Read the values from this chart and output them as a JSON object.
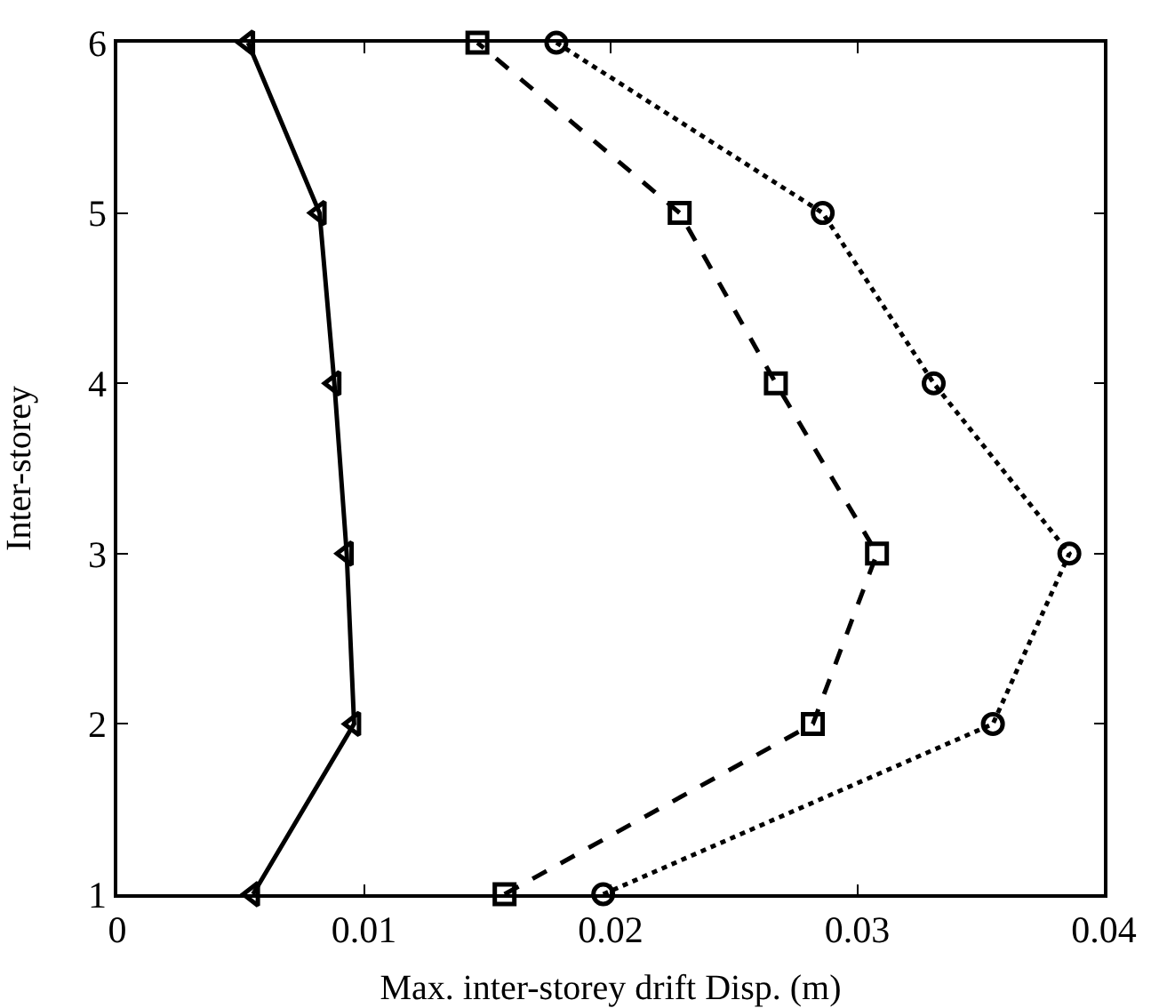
{
  "chart_data": {
    "type": "line",
    "xlabel": "Max. inter-storey drift Disp. (m)",
    "ylabel": "Inter-storey",
    "xlim": [
      0,
      0.04
    ],
    "xticks": [
      0,
      0.01,
      0.02,
      0.03,
      0.04
    ],
    "ylim": [
      1,
      6
    ],
    "yticks": [
      1,
      2,
      3,
      4,
      5,
      6
    ],
    "series": [
      {
        "color": "#000000",
        "marker": "triangle",
        "line_style": "solid",
        "x": [
          0.0055,
          0.0096,
          0.0093,
          0.0088,
          0.0082,
          0.0053
        ],
        "values": [
          1,
          2,
          3,
          4,
          5,
          6
        ]
      },
      {
        "color": "#000000",
        "marker": "square",
        "line_style": "dashed",
        "x": [
          0.0157,
          0.0282,
          0.0308,
          0.0267,
          0.0228,
          0.0146
        ],
        "values": [
          1,
          2,
          3,
          4,
          5,
          6
        ]
      },
      {
        "color": "#000000",
        "marker": "circle",
        "line_style": "dotted",
        "x": [
          0.0197,
          0.0355,
          0.0386,
          0.0331,
          0.0286,
          0.0178
        ],
        "values": [
          1,
          2,
          3,
          4,
          5,
          6
        ]
      }
    ]
  }
}
